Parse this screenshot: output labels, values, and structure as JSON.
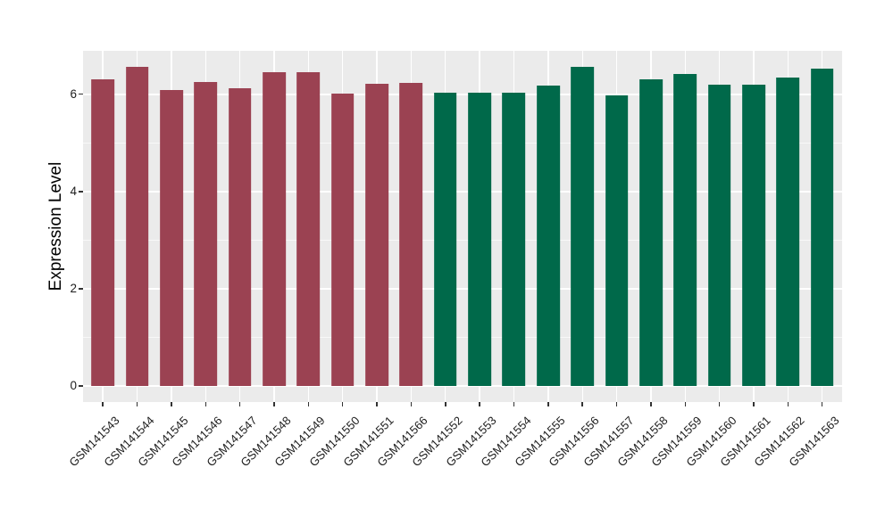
{
  "chart_data": {
    "type": "bar",
    "title": "",
    "xlabel": "",
    "ylabel": "Expression Level",
    "ylim": [
      0,
      6.9
    ],
    "y_major_ticks": [
      0,
      2,
      4,
      6
    ],
    "y_tick_labels": [
      "0",
      "2",
      "4",
      "6"
    ],
    "y_minor_gridlines": [
      1,
      3,
      5
    ],
    "grid": "on",
    "legend_position": "none",
    "group_colors": {
      "red": "#9B4252",
      "green": "#00694A"
    },
    "bars": [
      {
        "label": "GSM141543",
        "value": 6.3,
        "group": "red"
      },
      {
        "label": "GSM141544",
        "value": 6.56,
        "group": "red"
      },
      {
        "label": "GSM141545",
        "value": 6.09,
        "group": "red"
      },
      {
        "label": "GSM141546",
        "value": 6.25,
        "group": "red"
      },
      {
        "label": "GSM141547",
        "value": 6.12,
        "group": "red"
      },
      {
        "label": "GSM141548",
        "value": 6.45,
        "group": "red"
      },
      {
        "label": "GSM141549",
        "value": 6.46,
        "group": "red"
      },
      {
        "label": "GSM141550",
        "value": 6.01,
        "group": "red"
      },
      {
        "label": "GSM141551",
        "value": 6.21,
        "group": "red"
      },
      {
        "label": "GSM141566",
        "value": 6.23,
        "group": "red"
      },
      {
        "label": "GSM141552",
        "value": 6.04,
        "group": "green"
      },
      {
        "label": "GSM141553",
        "value": 6.04,
        "group": "green"
      },
      {
        "label": "GSM141554",
        "value": 6.04,
        "group": "green"
      },
      {
        "label": "GSM141555",
        "value": 6.18,
        "group": "green"
      },
      {
        "label": "GSM141556",
        "value": 6.56,
        "group": "green"
      },
      {
        "label": "GSM141557",
        "value": 5.97,
        "group": "green"
      },
      {
        "label": "GSM141558",
        "value": 6.3,
        "group": "green"
      },
      {
        "label": "GSM141559",
        "value": 6.41,
        "group": "green"
      },
      {
        "label": "GSM141560",
        "value": 6.19,
        "group": "green"
      },
      {
        "label": "GSM141561",
        "value": 6.2,
        "group": "green"
      },
      {
        "label": "GSM141562",
        "value": 6.34,
        "group": "green"
      },
      {
        "label": "GSM141563",
        "value": 6.53,
        "group": "green"
      }
    ]
  },
  "style": {
    "panel_bg": "#EBEBEB",
    "grid_major_color": "#FFFFFF",
    "grid_minor_color": "rgba(255,255,255,0.65)",
    "axis_text_color": "#1C1C1C",
    "axis_title_color": "#000000",
    "tick_mark_color": "#333333",
    "figure_bg": "#FFFFFF"
  }
}
